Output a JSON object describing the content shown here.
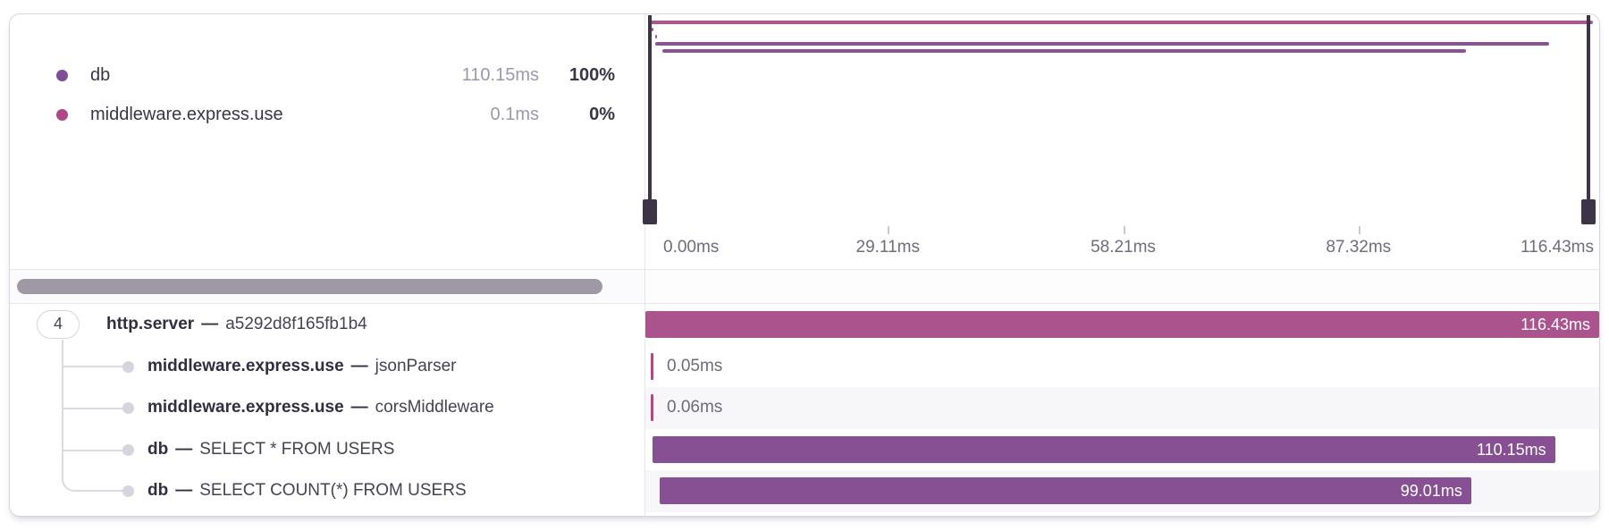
{
  "legend": {
    "items": [
      {
        "label": "db",
        "duration": "110.15ms",
        "percent": "100%",
        "dot_color": "#7e4f97"
      },
      {
        "label": "middleware.express.use",
        "duration": "0.1ms",
        "percent": "0%",
        "dot_color": "#b04787"
      }
    ]
  },
  "minimap": {
    "axis_max_ms": 116.43,
    "axis_ticks": [
      "0.00ms",
      "29.11ms",
      "58.21ms",
      "87.32ms",
      "116.43ms"
    ]
  },
  "waterfall": {
    "axis_max_ms": 116.43,
    "rows": [
      {
        "badge": "4",
        "name": "http.server",
        "separator": "—",
        "detail": "a5292d8f165fb1b4",
        "duration_label": "116.43ms",
        "start_ms": 0,
        "duration_ms": 116.43,
        "color": "#ab538c"
      },
      {
        "name": "middleware.express.use",
        "separator": "—",
        "detail": "jsonParser",
        "duration_label": "0.05ms",
        "start_ms": 0.45,
        "duration_ms": 0.05,
        "color": "#b54586"
      },
      {
        "name": "middleware.express.use",
        "separator": "—",
        "detail": "corsMiddleware",
        "duration_label": "0.06ms",
        "start_ms": 0.9,
        "duration_ms": 0.06,
        "color": "#b54586"
      },
      {
        "name": "db",
        "separator": "—",
        "detail": "SELECT * FROM USERS",
        "duration_label": "110.15ms",
        "start_ms": 0.9,
        "duration_ms": 110.15,
        "color": "#875093"
      },
      {
        "name": "db",
        "separator": "—",
        "detail": "SELECT COUNT(*) FROM USERS",
        "duration_label": "99.01ms",
        "start_ms": 1.8,
        "duration_ms": 99.01,
        "color": "#875093"
      }
    ]
  },
  "colors": {
    "handle": "#3d3448",
    "scrollbar": "#9f99a6",
    "minimap_pink": "#b25391",
    "minimap_purple": "#8a5196"
  }
}
